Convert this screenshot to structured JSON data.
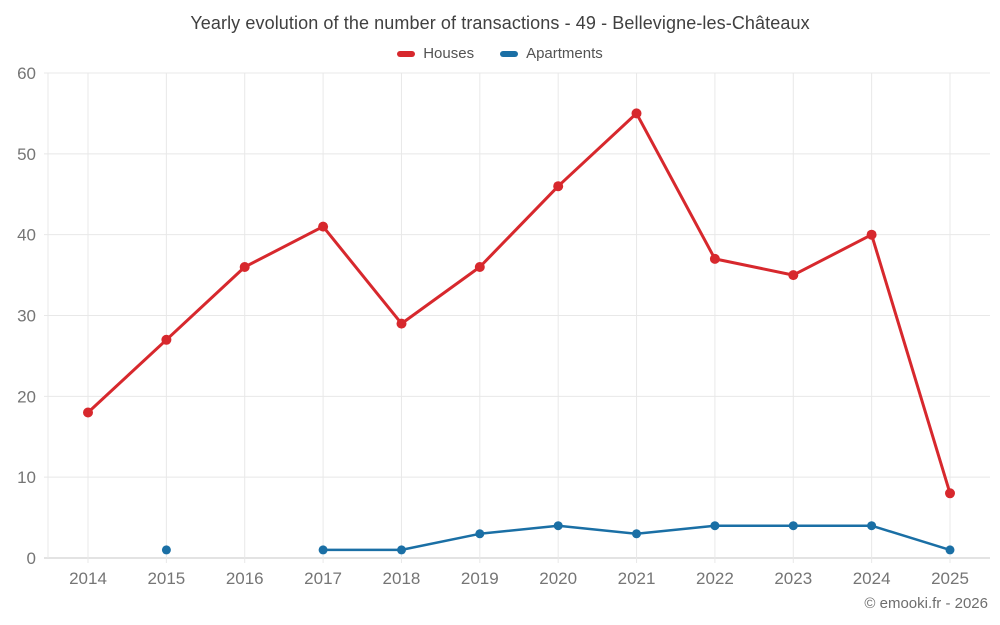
{
  "header": {
    "title": "Yearly evolution of the number of transactions - 49 - Bellevigne-les-Châteaux"
  },
  "legend": [
    {
      "label": "Houses",
      "color": "#d7282d"
    },
    {
      "label": "Apartments",
      "color": "#1a6fa5"
    }
  ],
  "footer": {
    "credit": "© emooki.fr - 2026"
  },
  "colors": {
    "houses": "#d7282d",
    "apartments": "#1a6fa5",
    "gridline": "#e8e8e8",
    "axis_line": "#c7c7c7",
    "axis_text": "#757575",
    "title_text": "#404040"
  },
  "chart_data": {
    "type": "line",
    "title": "Yearly evolution of the number of transactions - 49 - Bellevigne-les-Châteaux",
    "x": [
      2014,
      2015,
      2016,
      2017,
      2018,
      2019,
      2020,
      2021,
      2022,
      2023,
      2024,
      2025
    ],
    "series": [
      {
        "name": "Houses",
        "color": "#d7282d",
        "values": [
          18,
          27,
          36,
          41,
          29,
          36,
          46,
          55,
          37,
          35,
          40,
          8
        ]
      },
      {
        "name": "Apartments",
        "color": "#1a6fa5",
        "values": [
          null,
          1,
          null,
          1,
          1,
          3,
          4,
          3,
          4,
          4,
          4,
          1
        ]
      }
    ],
    "xlabel": "",
    "ylabel": "",
    "ylim": [
      0,
      60
    ],
    "yticks": [
      0,
      10,
      20,
      30,
      40,
      50,
      60
    ],
    "grid": true,
    "legend_position": "top",
    "annotations": [
      "© emooki.fr - 2026"
    ]
  }
}
